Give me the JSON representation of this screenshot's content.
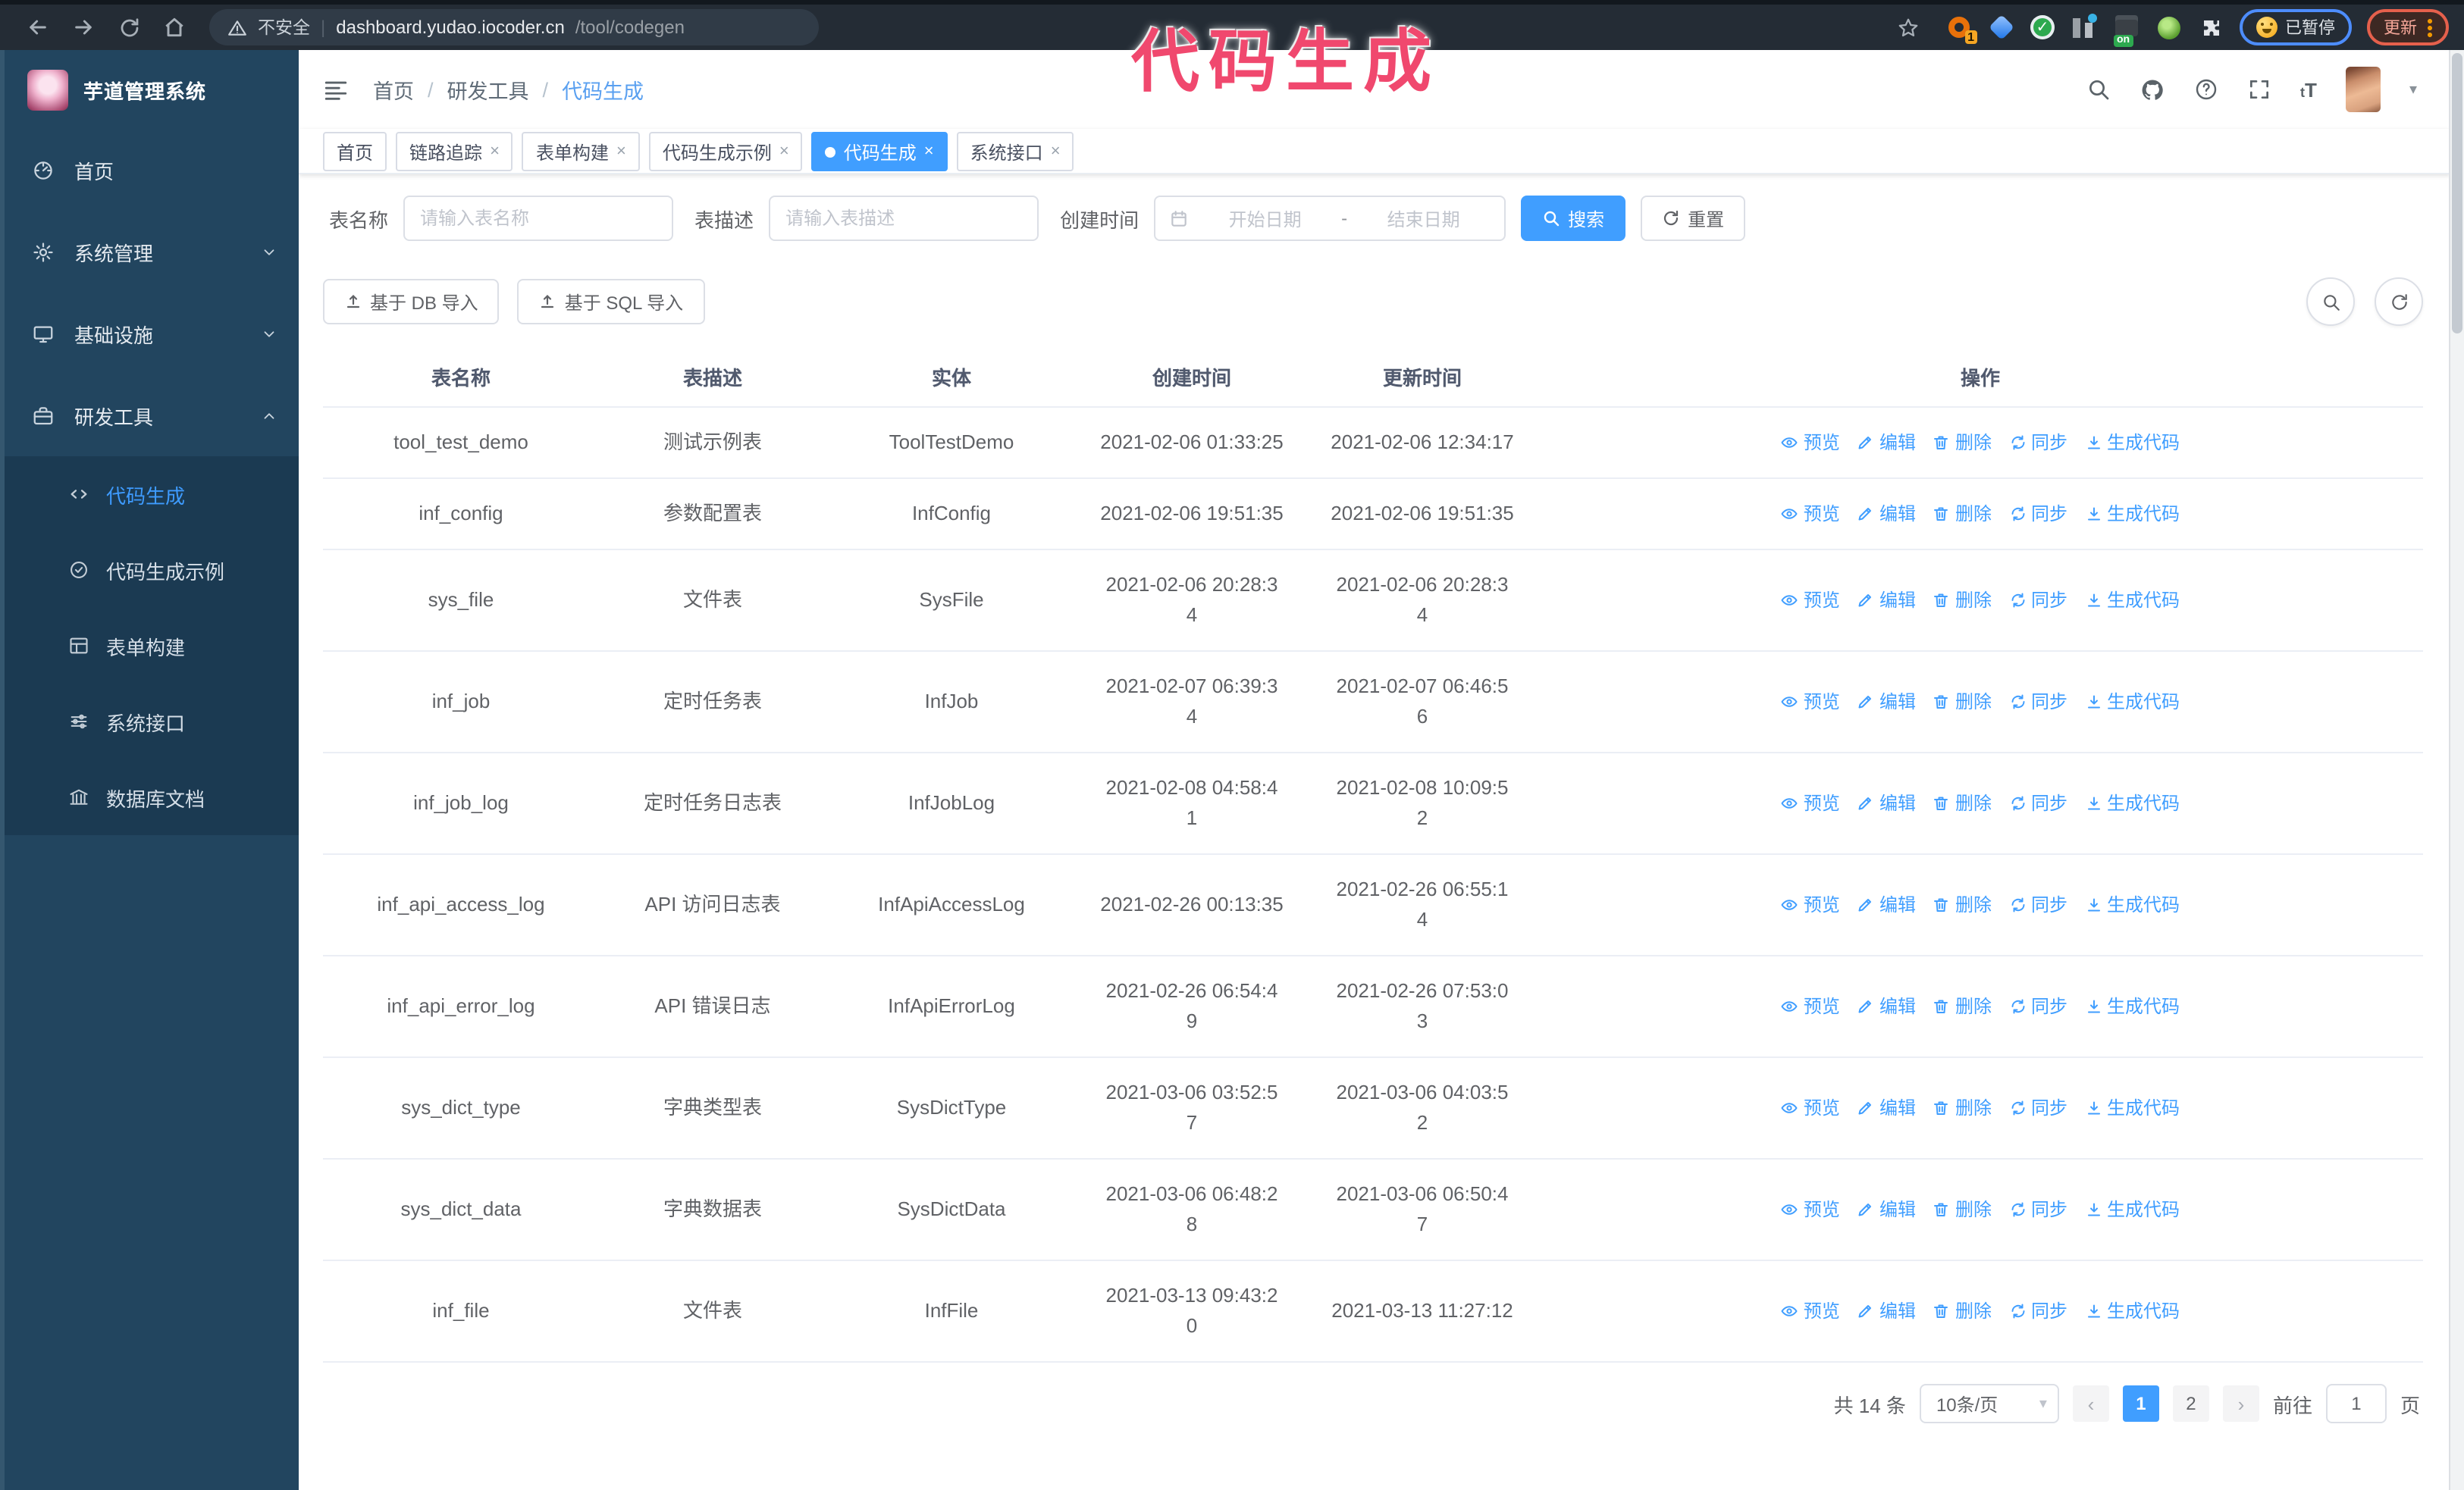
{
  "browser": {
    "security_label": "不安全",
    "url_host": "dashboard.yudao.iocoder.cn",
    "url_path": "/tool/codegen",
    "ext_count_badge": "1",
    "ext_on_badge": "on",
    "paused_label": "已暂停",
    "update_label": "更新"
  },
  "annotation": "代码生成",
  "sidebar": {
    "title": "芋道管理系统",
    "menu": [
      {
        "label": "首页",
        "icon": "gauge-icon"
      },
      {
        "label": "系统管理",
        "icon": "gear-icon",
        "chevron": "down"
      },
      {
        "label": "基础设施",
        "icon": "monitor-icon",
        "chevron": "down"
      },
      {
        "label": "研发工具",
        "icon": "briefcase-icon",
        "chevron": "up",
        "children": [
          {
            "label": "代码生成",
            "icon": "code-icon",
            "active": true
          },
          {
            "label": "代码生成示例",
            "icon": "check-circle-icon"
          },
          {
            "label": "表单构建",
            "icon": "form-icon"
          },
          {
            "label": "系统接口",
            "icon": "sliders-icon"
          },
          {
            "label": "数据库文档",
            "icon": "bank-icon"
          }
        ]
      }
    ]
  },
  "header": {
    "breadcrumb": [
      "首页",
      "研发工具",
      "代码生成"
    ]
  },
  "tabs": [
    {
      "label": "首页",
      "closable": false,
      "active": false
    },
    {
      "label": "链路追踪",
      "closable": true,
      "active": false
    },
    {
      "label": "表单构建",
      "closable": true,
      "active": false
    },
    {
      "label": "代码生成示例",
      "closable": true,
      "active": false
    },
    {
      "label": "代码生成",
      "closable": true,
      "active": true
    },
    {
      "label": "系统接口",
      "closable": true,
      "active": false
    }
  ],
  "filters": {
    "name_label": "表名称",
    "name_placeholder": "请输入表名称",
    "desc_label": "表描述",
    "desc_placeholder": "请输入表描述",
    "time_label": "创建时间",
    "start_placeholder": "开始日期",
    "range_separator": "-",
    "end_placeholder": "结束日期",
    "search_label": "搜索",
    "reset_label": "重置"
  },
  "toolbar": {
    "import_db": "基于 DB 导入",
    "import_sql": "基于 SQL 导入"
  },
  "table": {
    "columns": [
      "表名称",
      "表描述",
      "实体",
      "创建时间",
      "更新时间",
      "操作"
    ],
    "actions": [
      "预览",
      "编辑",
      "删除",
      "同步",
      "生成代码"
    ],
    "rows": [
      {
        "name": "tool_test_demo",
        "desc": "测试示例表",
        "entity": "ToolTestDemo",
        "created": "2021-02-06 01:33:25",
        "updated": "2021-02-06 12:34:17"
      },
      {
        "name": "inf_config",
        "desc": "参数配置表",
        "entity": "InfConfig",
        "created": "2021-02-06 19:51:35",
        "updated": "2021-02-06 19:51:35"
      },
      {
        "name": "sys_file",
        "desc": "文件表",
        "entity": "SysFile",
        "created": "2021-02-06 20:28:3\n4",
        "updated": "2021-02-06 20:28:3\n4"
      },
      {
        "name": "inf_job",
        "desc": "定时任务表",
        "entity": "InfJob",
        "created": "2021-02-07 06:39:3\n4",
        "updated": "2021-02-07 06:46:5\n6"
      },
      {
        "name": "inf_job_log",
        "desc": "定时任务日志表",
        "entity": "InfJobLog",
        "created": "2021-02-08 04:58:4\n1",
        "updated": "2021-02-08 10:09:5\n2"
      },
      {
        "name": "inf_api_access_log",
        "desc": "API 访问日志表",
        "entity": "InfApiAccessLog",
        "created": "2021-02-26 00:13:35",
        "updated": "2021-02-26 06:55:1\n4"
      },
      {
        "name": "inf_api_error_log",
        "desc": "API 错误日志",
        "entity": "InfApiErrorLog",
        "created": "2021-02-26 06:54:4\n9",
        "updated": "2021-02-26 07:53:0\n3"
      },
      {
        "name": "sys_dict_type",
        "desc": "字典类型表",
        "entity": "SysDictType",
        "created": "2021-03-06 03:52:5\n7",
        "updated": "2021-03-06 04:03:5\n2"
      },
      {
        "name": "sys_dict_data",
        "desc": "字典数据表",
        "entity": "SysDictData",
        "created": "2021-03-06 06:48:2\n8",
        "updated": "2021-03-06 06:50:4\n7"
      },
      {
        "name": "inf_file",
        "desc": "文件表",
        "entity": "InfFile",
        "created": "2021-03-13 09:43:2\n0",
        "updated": "2021-03-13 11:27:12"
      }
    ]
  },
  "pagination": {
    "total": "共 14 条",
    "page_size": "10条/页",
    "pages": [
      "1",
      "2"
    ],
    "active_page": "1",
    "goto_label": "前往",
    "goto_value": "1",
    "page_unit": "页"
  },
  "colors": {
    "primary": "#409EFF",
    "annotation": "#F0486E",
    "sidebar": "#22455F",
    "submenu": "#1B3A52"
  }
}
